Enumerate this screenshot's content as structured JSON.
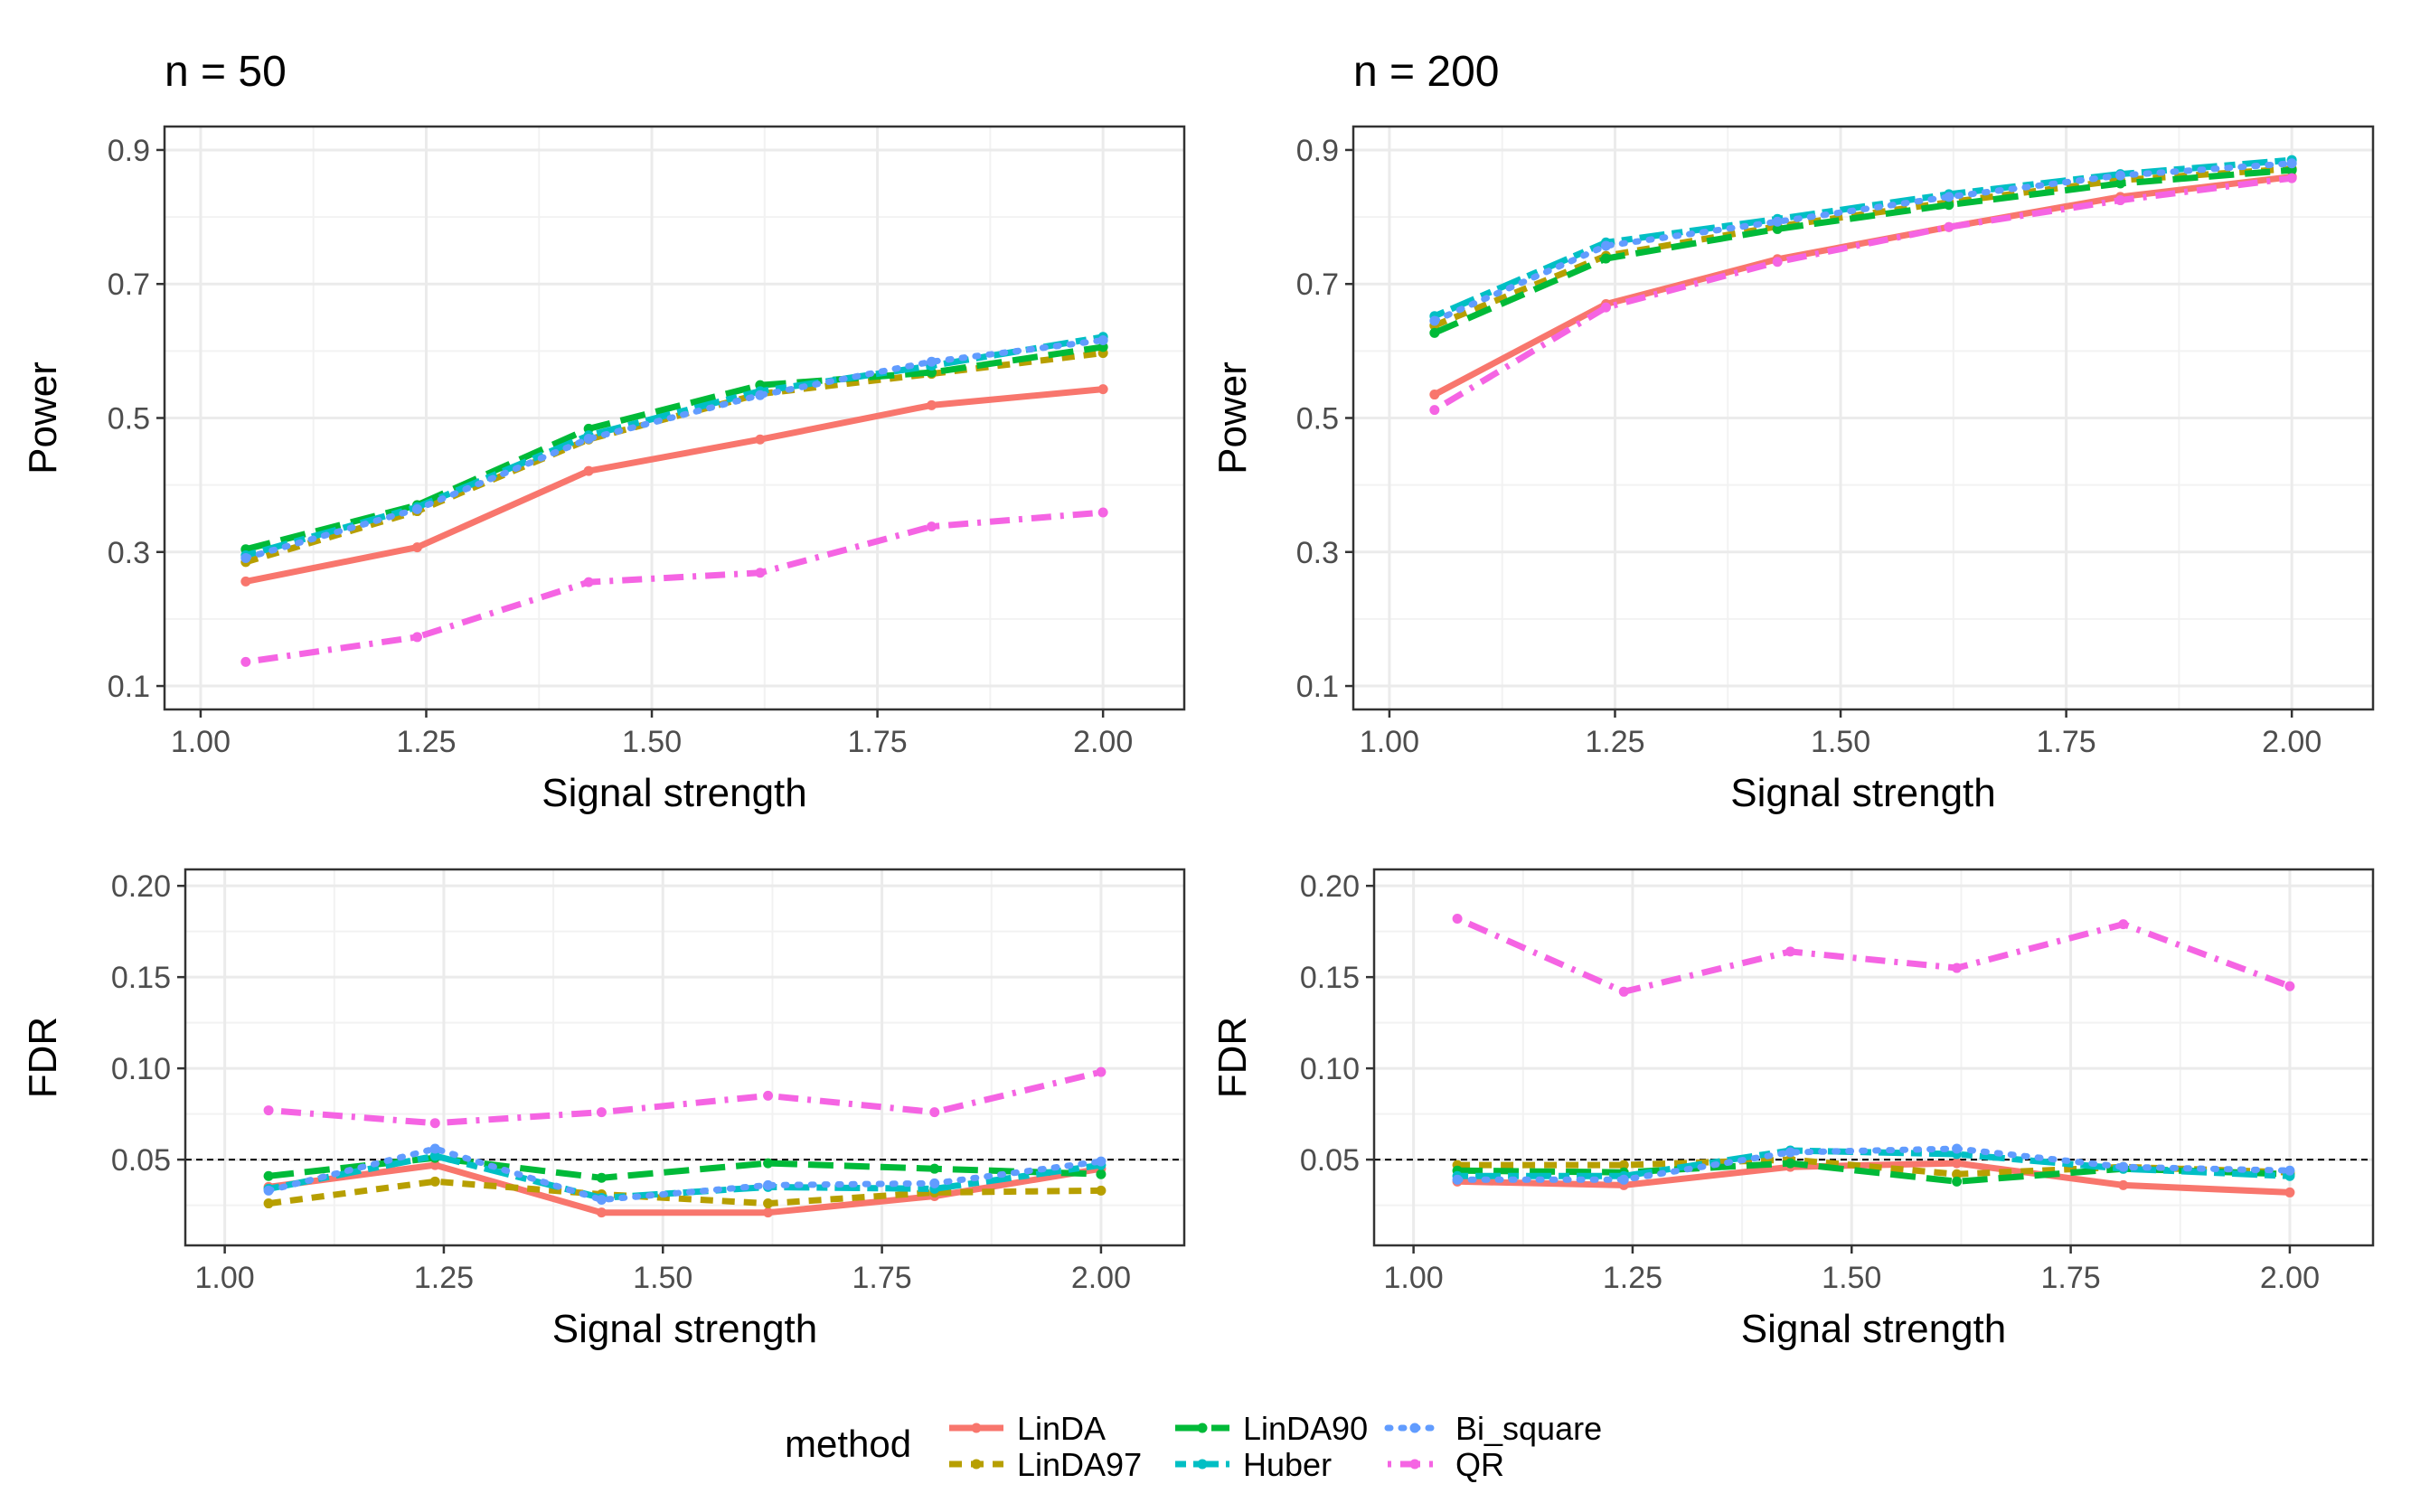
{
  "colors": {
    "LinDA": "#F8766D",
    "LinDA97": "#B79F00",
    "LinDA90": "#00BA38",
    "Huber": "#00BFC4",
    "Bi_square": "#619CFF",
    "QR": "#F564E3"
  },
  "legend": {
    "title": "method",
    "items": [
      {
        "name": "LinDA",
        "color": "#F8766D",
        "dash": "solid"
      },
      {
        "name": "LinDA97",
        "color": "#B79F00",
        "dash": "dashed"
      },
      {
        "name": "LinDA90",
        "color": "#00BA38",
        "dash": "longdash"
      },
      {
        "name": "Huber",
        "color": "#00BFC4",
        "dash": "twodash"
      },
      {
        "name": "Bi_square",
        "color": "#619CFF",
        "dash": "dotted"
      },
      {
        "name": "QR",
        "color": "#F564E3",
        "dash": "dotdash"
      }
    ]
  },
  "chart_data": [
    {
      "type": "line",
      "id": "power-n50",
      "title": "n = 50",
      "xlabel": "Signal strength",
      "ylabel": "Power",
      "xlim": [
        0.96,
        2.09
      ],
      "ylim": [
        0.065,
        0.935
      ],
      "xticks": [
        1.0,
        1.25,
        1.5,
        1.75,
        2.0
      ],
      "xtick_labels": [
        "1.00",
        "1.25",
        "1.50",
        "1.75",
        "2.00"
      ],
      "yticks": [
        0.1,
        0.3,
        0.5,
        0.7,
        0.9
      ],
      "ytick_labels": [
        "0.1",
        "0.3",
        "0.5",
        "0.7",
        "0.9"
      ],
      "hline": null,
      "x": [
        1.05,
        1.24,
        1.43,
        1.62,
        1.81,
        2.0
      ],
      "series": [
        {
          "name": "LinDA",
          "values": [
            0.256,
            0.307,
            0.421,
            0.468,
            0.519,
            0.543
          ]
        },
        {
          "name": "LinDA97",
          "values": [
            0.285,
            0.361,
            0.468,
            0.536,
            0.566,
            0.597
          ]
        },
        {
          "name": "LinDA90",
          "values": [
            0.304,
            0.37,
            0.484,
            0.549,
            0.568,
            0.606
          ]
        },
        {
          "name": "Huber",
          "values": [
            0.295,
            0.367,
            0.474,
            0.54,
            0.578,
            0.621
          ]
        },
        {
          "name": "Bi_square",
          "values": [
            0.291,
            0.364,
            0.469,
            0.534,
            0.584,
            0.616
          ]
        },
        {
          "name": "QR",
          "values": [
            0.136,
            0.173,
            0.255,
            0.269,
            0.338,
            0.359
          ]
        }
      ]
    },
    {
      "type": "line",
      "id": "power-n200",
      "title": "n = 200",
      "xlabel": "Signal strength",
      "ylabel": "Power",
      "xlim": [
        0.96,
        2.09
      ],
      "ylim": [
        0.065,
        0.935
      ],
      "xticks": [
        1.0,
        1.25,
        1.5,
        1.75,
        2.0
      ],
      "xtick_labels": [
        "1.00",
        "1.25",
        "1.50",
        "1.75",
        "2.00"
      ],
      "yticks": [
        0.1,
        0.3,
        0.5,
        0.7,
        0.9
      ],
      "ytick_labels": [
        "0.1",
        "0.3",
        "0.5",
        "0.7",
        "0.9"
      ],
      "hline": null,
      "x": [
        1.05,
        1.24,
        1.43,
        1.62,
        1.81,
        2.0
      ],
      "series": [
        {
          "name": "LinDA",
          "values": [
            0.535,
            0.67,
            0.737,
            0.785,
            0.83,
            0.86
          ]
        },
        {
          "name": "LinDA97",
          "values": [
            0.638,
            0.742,
            0.786,
            0.822,
            0.855,
            0.872
          ]
        },
        {
          "name": "LinDA90",
          "values": [
            0.627,
            0.738,
            0.782,
            0.818,
            0.85,
            0.87
          ]
        },
        {
          "name": "Huber",
          "values": [
            0.652,
            0.762,
            0.797,
            0.834,
            0.864,
            0.885
          ]
        },
        {
          "name": "Bi_square",
          "values": [
            0.645,
            0.757,
            0.793,
            0.83,
            0.862,
            0.88
          ]
        },
        {
          "name": "QR",
          "values": [
            0.512,
            0.665,
            0.733,
            0.785,
            0.825,
            0.858
          ]
        }
      ]
    },
    {
      "type": "line",
      "id": "fdr-n50",
      "title": "",
      "xlabel": "Signal strength",
      "ylabel": "FDR",
      "xlim": [
        0.955,
        2.095
      ],
      "ylim": [
        0.003,
        0.209
      ],
      "xticks": [
        1.0,
        1.25,
        1.5,
        1.75,
        2.0
      ],
      "xtick_labels": [
        "1.00",
        "1.25",
        "1.50",
        "1.75",
        "2.00"
      ],
      "yticks": [
        0.05,
        0.1,
        0.15,
        0.2
      ],
      "ytick_labels": [
        "0.05",
        "0.10",
        "0.15",
        "0.20"
      ],
      "hline": 0.05,
      "x": [
        1.05,
        1.24,
        1.43,
        1.62,
        1.81,
        2.0
      ],
      "series": [
        {
          "name": "LinDA",
          "values": [
            0.035,
            0.047,
            0.021,
            0.021,
            0.03,
            0.045
          ]
        },
        {
          "name": "LinDA97",
          "values": [
            0.026,
            0.038,
            0.031,
            0.026,
            0.032,
            0.033
          ]
        },
        {
          "name": "LinDA90",
          "values": [
            0.041,
            0.051,
            0.04,
            0.048,
            0.045,
            0.042
          ]
        },
        {
          "name": "Huber",
          "values": [
            0.034,
            0.052,
            0.029,
            0.035,
            0.034,
            0.047
          ]
        },
        {
          "name": "Bi_square",
          "values": [
            0.033,
            0.056,
            0.028,
            0.036,
            0.037,
            0.049
          ]
        },
        {
          "name": "QR",
          "values": [
            0.077,
            0.07,
            0.076,
            0.085,
            0.076,
            0.098
          ]
        }
      ]
    },
    {
      "type": "line",
      "id": "fdr-n200",
      "title": "",
      "xlabel": "Signal strength",
      "ylabel": "FDR",
      "xlim": [
        0.955,
        2.095
      ],
      "ylim": [
        0.003,
        0.209
      ],
      "xticks": [
        1.0,
        1.25,
        1.5,
        1.75,
        2.0
      ],
      "xtick_labels": [
        "1.00",
        "1.25",
        "1.50",
        "1.75",
        "2.00"
      ],
      "yticks": [
        0.05,
        0.1,
        0.15,
        0.2
      ],
      "ytick_labels": [
        "0.05",
        "0.10",
        "0.15",
        "0.20"
      ],
      "hline": 0.05,
      "x": [
        1.05,
        1.24,
        1.43,
        1.62,
        1.81,
        2.0
      ],
      "series": [
        {
          "name": "LinDA",
          "values": [
            0.038,
            0.036,
            0.046,
            0.048,
            0.036,
            0.032
          ]
        },
        {
          "name": "LinDA97",
          "values": [
            0.047,
            0.047,
            0.05,
            0.042,
            0.046,
            0.043
          ]
        },
        {
          "name": "LinDA90",
          "values": [
            0.044,
            0.043,
            0.048,
            0.038,
            0.045,
            0.042
          ]
        },
        {
          "name": "Huber",
          "values": [
            0.041,
            0.041,
            0.055,
            0.053,
            0.045,
            0.041
          ]
        },
        {
          "name": "Bi_square",
          "values": [
            0.039,
            0.039,
            0.054,
            0.056,
            0.046,
            0.044
          ]
        },
        {
          "name": "QR",
          "values": [
            0.182,
            0.142,
            0.164,
            0.155,
            0.179,
            0.145
          ]
        }
      ]
    }
  ]
}
